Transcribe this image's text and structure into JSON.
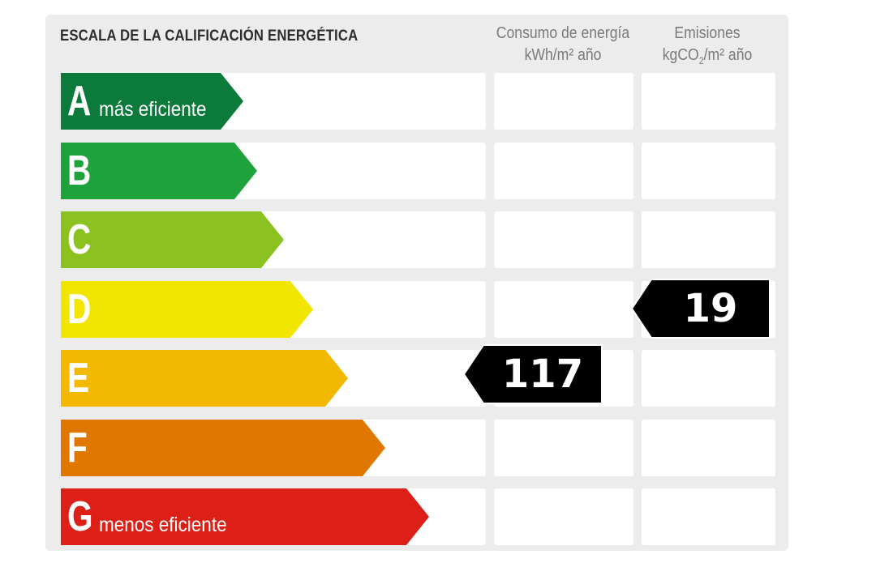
{
  "label": {
    "title": "ESCALA DE LA CALIFICACIÓN ENERGÉTICA",
    "columns": {
      "energy": {
        "line1": "Consumo de energía",
        "line2": "kWh/m² año"
      },
      "emissions": {
        "line1": "Emisiones",
        "line2_prefix": "kgCO",
        "line2_sub": "2",
        "line2_suffix": "/m² año"
      }
    },
    "ratings": [
      {
        "letter": "A",
        "text": "más eficiente",
        "color": "#0b7a3b"
      },
      {
        "letter": "B",
        "text": "",
        "color": "#1ea33c"
      },
      {
        "letter": "C",
        "text": "",
        "color": "#8cc21f"
      },
      {
        "letter": "D",
        "text": "",
        "color": "#f2e500"
      },
      {
        "letter": "E",
        "text": "",
        "color": "#f2b900"
      },
      {
        "letter": "F",
        "text": "",
        "color": "#e07700"
      },
      {
        "letter": "G",
        "text": "menos eficiente",
        "color": "#dd2017"
      }
    ],
    "energy_value": {
      "value": "117",
      "rating": "E"
    },
    "emissions_value": {
      "value": "19",
      "rating": "D"
    }
  }
}
